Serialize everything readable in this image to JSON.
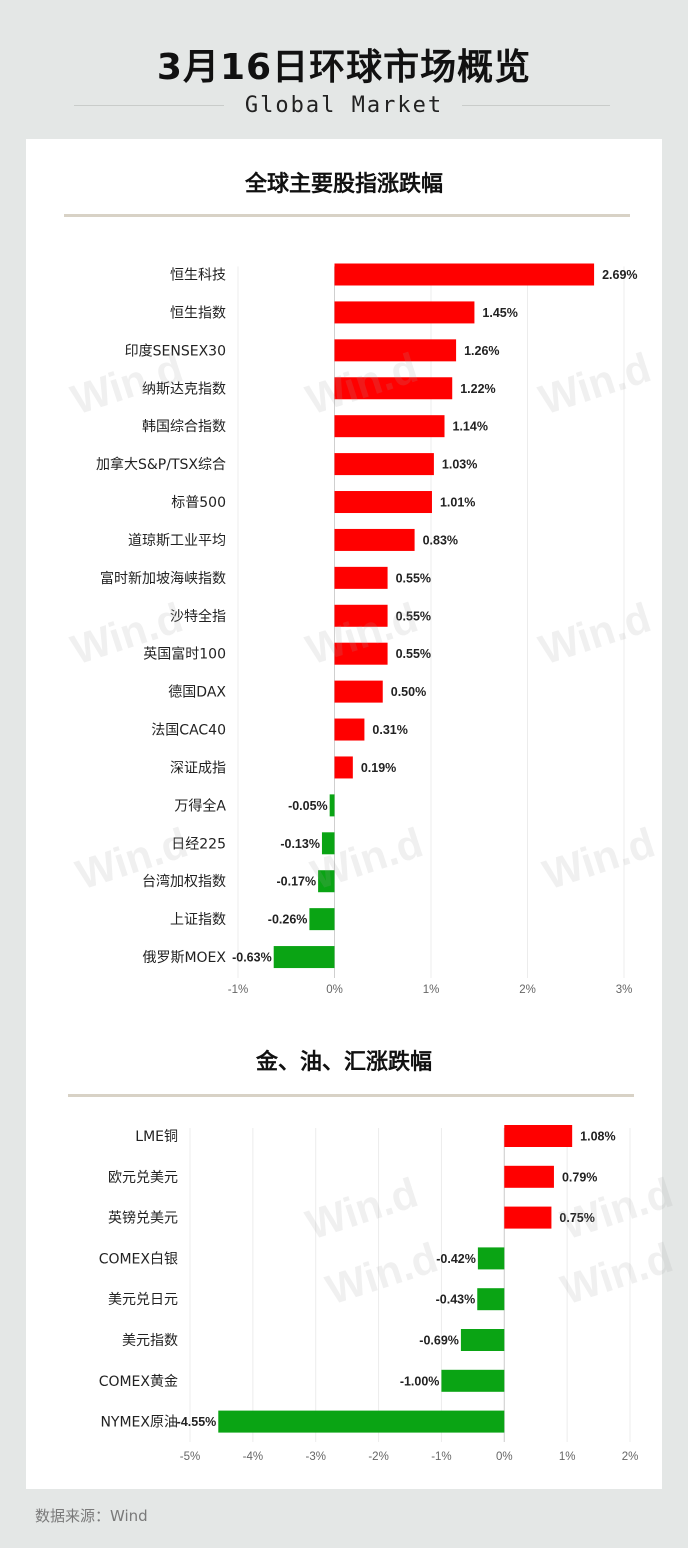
{
  "header": {
    "title": "3月16日环球市场概览",
    "subtitle": "Global Market"
  },
  "watermark": "Win.d",
  "footer": {
    "source": "数据来源：Wind"
  },
  "colors": {
    "up": "#ff0000",
    "down": "#0aa414",
    "background": "#e4e7e6",
    "card": "#ffffff"
  },
  "chart_data": [
    {
      "type": "bar",
      "orientation": "horizontal",
      "title": "全球主要股指涨跌幅",
      "xlim": [
        -1,
        3
      ],
      "ticks": [
        -1,
        0,
        1,
        2,
        3
      ],
      "tick_labels": [
        "-1%",
        "0%",
        "1%",
        "2%",
        "3%"
      ],
      "categories": [
        "恒生科技",
        "恒生指数",
        "印度SENSEX30",
        "纳斯达克指数",
        "韩国综合指数",
        "加拿大S&P/TSX综合",
        "标普500",
        "道琼斯工业平均",
        "富时新加坡海峡指数",
        "沙特全指",
        "英国富时100",
        "德国DAX",
        "法国CAC40",
        "深证成指",
        "万得全A",
        "日经225",
        "台湾加权指数",
        "上证指数",
        "俄罗斯MOEX"
      ],
      "values": [
        2.69,
        1.45,
        1.26,
        1.22,
        1.14,
        1.03,
        1.01,
        0.83,
        0.55,
        0.55,
        0.55,
        0.5,
        0.31,
        0.19,
        -0.05,
        -0.13,
        -0.17,
        -0.26,
        -0.63
      ],
      "value_labels": [
        "2.69%",
        "1.45%",
        "1.26%",
        "1.22%",
        "1.14%",
        "1.03%",
        "1.01%",
        "0.83%",
        "0.55%",
        "0.55%",
        "0.55%",
        "0.50%",
        "0.31%",
        "0.19%",
        "-0.05%",
        "-0.13%",
        "-0.17%",
        "-0.26%",
        "-0.63%"
      ],
      "grid": true
    },
    {
      "type": "bar",
      "orientation": "horizontal",
      "title": "金、油、汇涨跌幅",
      "xlim": [
        -5,
        2
      ],
      "ticks": [
        -5,
        -4,
        -3,
        -2,
        -1,
        0,
        1,
        2
      ],
      "tick_labels": [
        "-5%",
        "-4%",
        "-3%",
        "-2%",
        "-1%",
        "0%",
        "1%",
        "2%"
      ],
      "categories": [
        "LME铜",
        "欧元兑美元",
        "英镑兑美元",
        "COMEX白银",
        "美元兑日元",
        "美元指数",
        "COMEX黄金",
        "NYMEX原油"
      ],
      "values": [
        1.08,
        0.79,
        0.75,
        -0.42,
        -0.43,
        -0.69,
        -1.0,
        -4.55
      ],
      "value_labels": [
        "1.08%",
        "0.79%",
        "0.75%",
        "-0.42%",
        "-0.43%",
        "-0.69%",
        "-1.00%",
        "-4.55%"
      ],
      "grid": true
    }
  ]
}
